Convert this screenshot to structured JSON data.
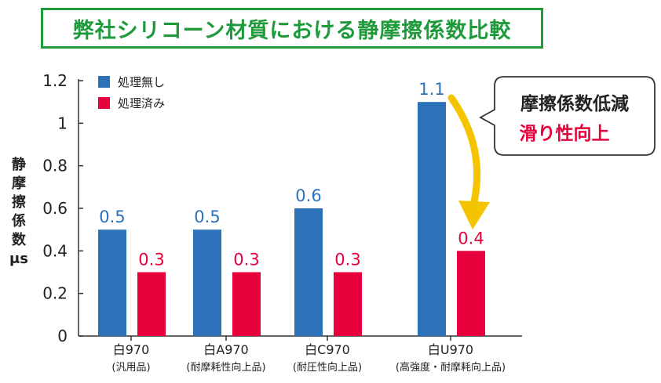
{
  "title": "弊社シリコーン材質における静摩擦係数比較",
  "colors": {
    "untreated": "#2d72b8",
    "treated": "#e6003c",
    "arrow": "#f5c400",
    "title": "#1f9a3b"
  },
  "chart_data": {
    "type": "bar",
    "ylabel_chars": [
      "静",
      "摩",
      "擦",
      "係",
      "数",
      "μs"
    ],
    "ylim": [
      0,
      1.2
    ],
    "yticks": [
      "0",
      "0.2",
      "0.4",
      "0.6",
      "0.8",
      "1",
      "1.2"
    ],
    "categories": [
      {
        "name": "白970",
        "sub": "(汎用品)"
      },
      {
        "name": "白A970",
        "sub": "(耐摩耗性向上品)"
      },
      {
        "name": "白C970",
        "sub": "(耐圧性向上品)"
      },
      {
        "name": "白U970",
        "sub": "(高強度・耐摩耗向上品)"
      }
    ],
    "series": [
      {
        "name": "処理無し",
        "values": [
          0.5,
          0.5,
          0.6,
          1.1
        ],
        "labels": [
          "0.5",
          "0.5",
          "0.6",
          "1.1"
        ]
      },
      {
        "name": "処理済み",
        "values": [
          0.3,
          0.3,
          0.3,
          0.4
        ],
        "labels": [
          "0.3",
          "0.3",
          "0.3",
          "0.4"
        ]
      }
    ],
    "callout": {
      "line1": "摩擦係数低減",
      "line2": "滑り性向上"
    }
  }
}
